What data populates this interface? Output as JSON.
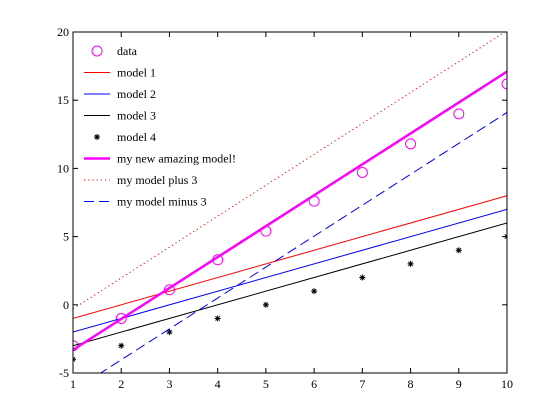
{
  "chart_data": {
    "type": "line",
    "title": "",
    "xlabel": "",
    "ylabel": "",
    "xlim": [
      1,
      10
    ],
    "ylim": [
      -5,
      20
    ],
    "xticks": [
      1,
      2,
      3,
      4,
      5,
      6,
      7,
      8,
      9,
      10
    ],
    "yticks": [
      -5,
      0,
      5,
      10,
      15,
      20
    ],
    "grid": false,
    "legend_position": "top-left",
    "x": [
      1,
      2,
      3,
      4,
      5,
      6,
      7,
      8,
      9,
      10
    ],
    "series": [
      {
        "name": "data",
        "style": "circle-markers",
        "color": "#ff00ff",
        "x": [
          1,
          2,
          3,
          4,
          5,
          6,
          7,
          8,
          9,
          10
        ],
        "values": [
          -3,
          -1,
          1.1,
          3.3,
          5.4,
          7.6,
          9.7,
          11.8,
          14.0,
          16.2
        ]
      },
      {
        "name": "model 1",
        "style": "solid",
        "color": "#ff0000",
        "x": [
          1,
          10
        ],
        "values": [
          -1,
          8
        ]
      },
      {
        "name": "model 2",
        "style": "solid",
        "color": "#0000ff",
        "x": [
          1,
          10
        ],
        "values": [
          -2,
          7
        ]
      },
      {
        "name": "model 3",
        "style": "solid",
        "color": "#000000",
        "x": [
          1,
          10
        ],
        "values": [
          -3,
          6
        ]
      },
      {
        "name": "model 4",
        "style": "star-markers",
        "color": "#000000",
        "x": [
          1,
          2,
          3,
          4,
          5,
          6,
          7,
          8,
          9,
          10
        ],
        "values": [
          -4,
          -3,
          -2,
          -1,
          0,
          1,
          2,
          3,
          4,
          5
        ]
      },
      {
        "name": "my new amazing model!",
        "style": "thick",
        "color": "#ff00ff",
        "x": [
          1,
          10
        ],
        "values": [
          -3.3,
          17.1
        ]
      },
      {
        "name": "my model plus 3",
        "style": "dotted",
        "color": "#ff0000",
        "x": [
          1,
          10
        ],
        "values": [
          -0.3,
          20.1
        ]
      },
      {
        "name": "my model minus 3",
        "style": "dashed",
        "color": "#0000ff",
        "x": [
          1,
          10
        ],
        "values": [
          -6.3,
          14.1
        ]
      }
    ]
  }
}
